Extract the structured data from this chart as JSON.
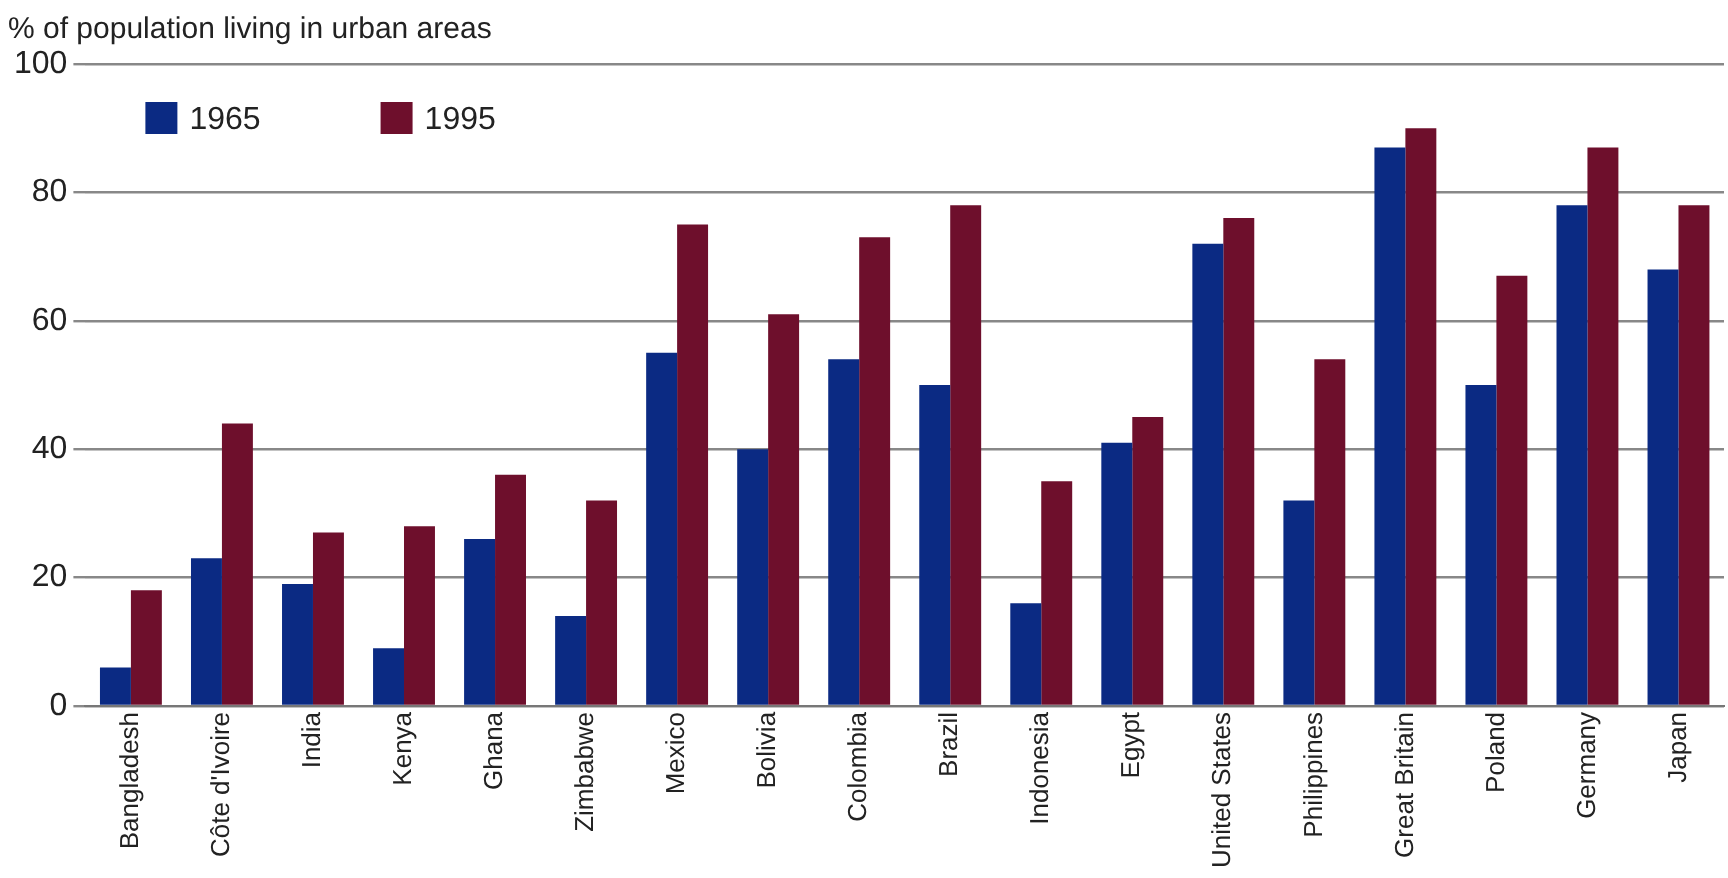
{
  "chart_data": {
    "type": "bar",
    "ylabel": "% of population living in urban areas",
    "categories": [
      "Bangladesh",
      "Côte d'Ivoire",
      "India",
      "Kenya",
      "Ghana",
      "Zimbabwe",
      "Mexico",
      "Bolivia",
      "Colombia",
      "Brazil",
      "Indonesia",
      "Egypt",
      "United States",
      "Philippines",
      "Great Britain",
      "Poland",
      "Germany",
      "Japan"
    ],
    "series": [
      {
        "name": "1965",
        "color": "#0b2a83",
        "values": [
          6,
          23,
          19,
          9,
          26,
          14,
          55,
          40,
          54,
          50,
          16,
          41,
          72,
          32,
          87,
          50,
          78,
          68
        ]
      },
      {
        "name": "1995",
        "color": "#6e0f2c",
        "values": [
          18,
          44,
          27,
          28,
          36,
          32,
          75,
          61,
          73,
          78,
          35,
          45,
          76,
          54,
          90,
          67,
          87,
          78
        ]
      }
    ],
    "ylim": [
      0,
      100
    ],
    "yticks": [
      0,
      20,
      40,
      60,
      80,
      100
    ],
    "grid": "y",
    "legend": "top left"
  }
}
